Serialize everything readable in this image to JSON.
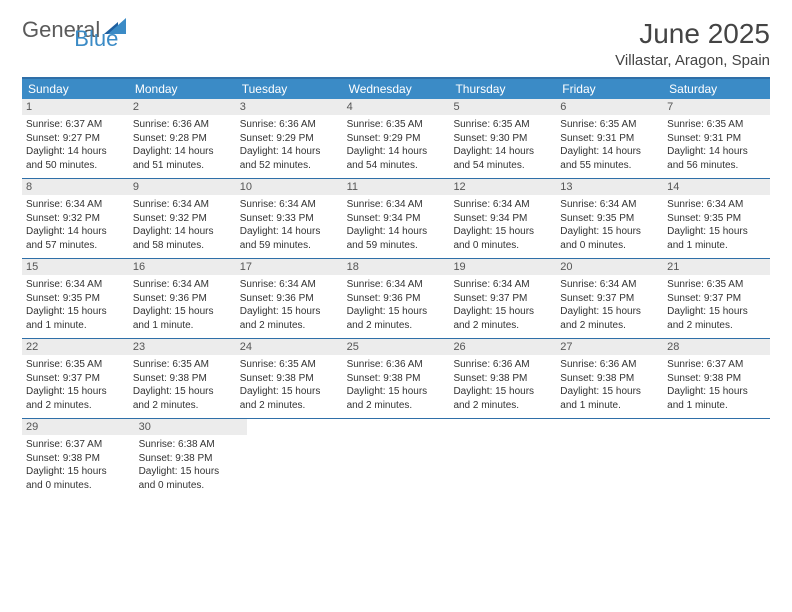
{
  "logo": {
    "text1": "General",
    "text2": "Blue"
  },
  "title": "June 2025",
  "location": "Villastar, Aragon, Spain",
  "colors": {
    "header_bg": "#3b8bc6",
    "border": "#2f6fa8",
    "daynum_bg": "#ececec",
    "text": "#333333"
  },
  "dow": [
    "Sunday",
    "Monday",
    "Tuesday",
    "Wednesday",
    "Thursday",
    "Friday",
    "Saturday"
  ],
  "weeks": [
    [
      {
        "n": "1",
        "sr": "Sunrise: 6:37 AM",
        "ss": "Sunset: 9:27 PM",
        "d1": "Daylight: 14 hours",
        "d2": "and 50 minutes."
      },
      {
        "n": "2",
        "sr": "Sunrise: 6:36 AM",
        "ss": "Sunset: 9:28 PM",
        "d1": "Daylight: 14 hours",
        "d2": "and 51 minutes."
      },
      {
        "n": "3",
        "sr": "Sunrise: 6:36 AM",
        "ss": "Sunset: 9:29 PM",
        "d1": "Daylight: 14 hours",
        "d2": "and 52 minutes."
      },
      {
        "n": "4",
        "sr": "Sunrise: 6:35 AM",
        "ss": "Sunset: 9:29 PM",
        "d1": "Daylight: 14 hours",
        "d2": "and 54 minutes."
      },
      {
        "n": "5",
        "sr": "Sunrise: 6:35 AM",
        "ss": "Sunset: 9:30 PM",
        "d1": "Daylight: 14 hours",
        "d2": "and 54 minutes."
      },
      {
        "n": "6",
        "sr": "Sunrise: 6:35 AM",
        "ss": "Sunset: 9:31 PM",
        "d1": "Daylight: 14 hours",
        "d2": "and 55 minutes."
      },
      {
        "n": "7",
        "sr": "Sunrise: 6:35 AM",
        "ss": "Sunset: 9:31 PM",
        "d1": "Daylight: 14 hours",
        "d2": "and 56 minutes."
      }
    ],
    [
      {
        "n": "8",
        "sr": "Sunrise: 6:34 AM",
        "ss": "Sunset: 9:32 PM",
        "d1": "Daylight: 14 hours",
        "d2": "and 57 minutes."
      },
      {
        "n": "9",
        "sr": "Sunrise: 6:34 AM",
        "ss": "Sunset: 9:32 PM",
        "d1": "Daylight: 14 hours",
        "d2": "and 58 minutes."
      },
      {
        "n": "10",
        "sr": "Sunrise: 6:34 AM",
        "ss": "Sunset: 9:33 PM",
        "d1": "Daylight: 14 hours",
        "d2": "and 59 minutes."
      },
      {
        "n": "11",
        "sr": "Sunrise: 6:34 AM",
        "ss": "Sunset: 9:34 PM",
        "d1": "Daylight: 14 hours",
        "d2": "and 59 minutes."
      },
      {
        "n": "12",
        "sr": "Sunrise: 6:34 AM",
        "ss": "Sunset: 9:34 PM",
        "d1": "Daylight: 15 hours",
        "d2": "and 0 minutes."
      },
      {
        "n": "13",
        "sr": "Sunrise: 6:34 AM",
        "ss": "Sunset: 9:35 PM",
        "d1": "Daylight: 15 hours",
        "d2": "and 0 minutes."
      },
      {
        "n": "14",
        "sr": "Sunrise: 6:34 AM",
        "ss": "Sunset: 9:35 PM",
        "d1": "Daylight: 15 hours",
        "d2": "and 1 minute."
      }
    ],
    [
      {
        "n": "15",
        "sr": "Sunrise: 6:34 AM",
        "ss": "Sunset: 9:35 PM",
        "d1": "Daylight: 15 hours",
        "d2": "and 1 minute."
      },
      {
        "n": "16",
        "sr": "Sunrise: 6:34 AM",
        "ss": "Sunset: 9:36 PM",
        "d1": "Daylight: 15 hours",
        "d2": "and 1 minute."
      },
      {
        "n": "17",
        "sr": "Sunrise: 6:34 AM",
        "ss": "Sunset: 9:36 PM",
        "d1": "Daylight: 15 hours",
        "d2": "and 2 minutes."
      },
      {
        "n": "18",
        "sr": "Sunrise: 6:34 AM",
        "ss": "Sunset: 9:36 PM",
        "d1": "Daylight: 15 hours",
        "d2": "and 2 minutes."
      },
      {
        "n": "19",
        "sr": "Sunrise: 6:34 AM",
        "ss": "Sunset: 9:37 PM",
        "d1": "Daylight: 15 hours",
        "d2": "and 2 minutes."
      },
      {
        "n": "20",
        "sr": "Sunrise: 6:34 AM",
        "ss": "Sunset: 9:37 PM",
        "d1": "Daylight: 15 hours",
        "d2": "and 2 minutes."
      },
      {
        "n": "21",
        "sr": "Sunrise: 6:35 AM",
        "ss": "Sunset: 9:37 PM",
        "d1": "Daylight: 15 hours",
        "d2": "and 2 minutes."
      }
    ],
    [
      {
        "n": "22",
        "sr": "Sunrise: 6:35 AM",
        "ss": "Sunset: 9:37 PM",
        "d1": "Daylight: 15 hours",
        "d2": "and 2 minutes."
      },
      {
        "n": "23",
        "sr": "Sunrise: 6:35 AM",
        "ss": "Sunset: 9:38 PM",
        "d1": "Daylight: 15 hours",
        "d2": "and 2 minutes."
      },
      {
        "n": "24",
        "sr": "Sunrise: 6:35 AM",
        "ss": "Sunset: 9:38 PM",
        "d1": "Daylight: 15 hours",
        "d2": "and 2 minutes."
      },
      {
        "n": "25",
        "sr": "Sunrise: 6:36 AM",
        "ss": "Sunset: 9:38 PM",
        "d1": "Daylight: 15 hours",
        "d2": "and 2 minutes."
      },
      {
        "n": "26",
        "sr": "Sunrise: 6:36 AM",
        "ss": "Sunset: 9:38 PM",
        "d1": "Daylight: 15 hours",
        "d2": "and 2 minutes."
      },
      {
        "n": "27",
        "sr": "Sunrise: 6:36 AM",
        "ss": "Sunset: 9:38 PM",
        "d1": "Daylight: 15 hours",
        "d2": "and 1 minute."
      },
      {
        "n": "28",
        "sr": "Sunrise: 6:37 AM",
        "ss": "Sunset: 9:38 PM",
        "d1": "Daylight: 15 hours",
        "d2": "and 1 minute."
      }
    ],
    [
      {
        "n": "29",
        "sr": "Sunrise: 6:37 AM",
        "ss": "Sunset: 9:38 PM",
        "d1": "Daylight: 15 hours",
        "d2": "and 0 minutes."
      },
      {
        "n": "30",
        "sr": "Sunrise: 6:38 AM",
        "ss": "Sunset: 9:38 PM",
        "d1": "Daylight: 15 hours",
        "d2": "and 0 minutes."
      },
      null,
      null,
      null,
      null,
      null
    ]
  ]
}
